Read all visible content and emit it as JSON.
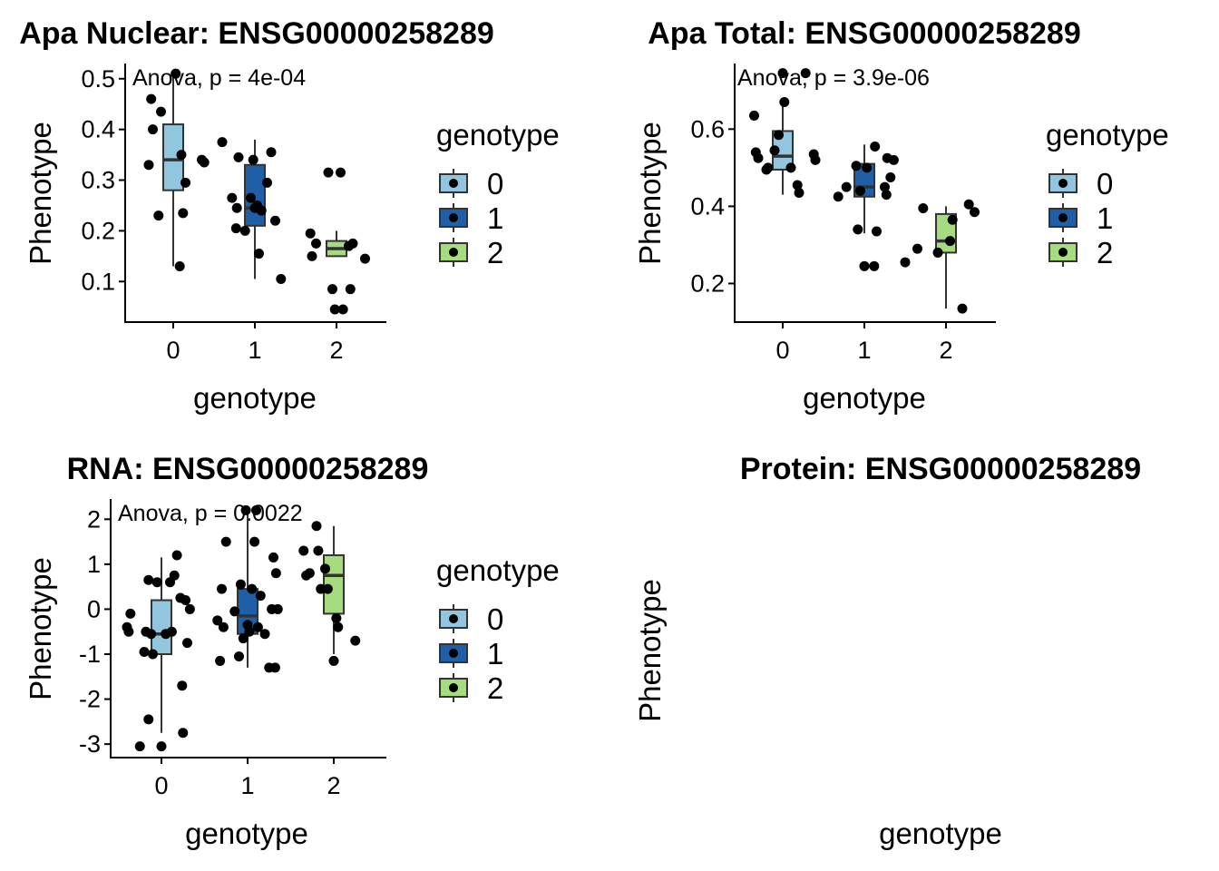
{
  "legend_title": "genotype",
  "legend_colors": {
    "0": "#92c5de",
    "1": "#1f5fa8",
    "2": "#a6dc7f"
  },
  "chart_data": [
    {
      "type": "boxplot",
      "title": "Apa Nuclear: ENSG00000258289",
      "xlabel": "genotype",
      "ylabel": "Phenotype",
      "annotation": "Anova, p = 4e-04",
      "categories": [
        "0",
        "1",
        "2"
      ],
      "ylim": [
        0.02,
        0.53
      ],
      "yticks": [
        0.1,
        0.2,
        0.3,
        0.4,
        0.5
      ],
      "ytick_labels": [
        "0.1",
        "0.2",
        "0.3",
        "0.4",
        "0.5"
      ],
      "legend": [
        "0",
        "1",
        "2"
      ],
      "boxes": [
        {
          "cat": "0",
          "q1": 0.28,
          "median": 0.34,
          "q3": 0.41,
          "whisker_low": 0.13,
          "whisker_high": 0.51
        },
        {
          "cat": "1",
          "q1": 0.21,
          "median": 0.245,
          "q3": 0.33,
          "whisker_low": 0.105,
          "whisker_high": 0.38
        },
        {
          "cat": "2",
          "q1": 0.15,
          "median": 0.165,
          "q3": 0.18,
          "whisker_low": 0.15,
          "whisker_high": 0.2
        }
      ],
      "points": [
        {
          "x": -0.3,
          "y": 0.33
        },
        {
          "x": -0.27,
          "y": 0.46
        },
        {
          "x": -0.25,
          "y": 0.4
        },
        {
          "x": -0.18,
          "y": 0.23
        },
        {
          "x": -0.15,
          "y": 0.435
        },
        {
          "x": 0.03,
          "y": 0.51
        },
        {
          "x": 0.08,
          "y": 0.13
        },
        {
          "x": 0.1,
          "y": 0.35
        },
        {
          "x": 0.12,
          "y": 0.235
        },
        {
          "x": 0.15,
          "y": 0.295
        },
        {
          "x": 0.35,
          "y": 0.34
        },
        {
          "x": 0.38,
          "y": 0.335
        },
        {
          "x": 0.6,
          "y": 0.375
        },
        {
          "x": 0.72,
          "y": 0.265
        },
        {
          "x": 0.77,
          "y": 0.205
        },
        {
          "x": 0.78,
          "y": 0.245
        },
        {
          "x": 0.8,
          "y": 0.345
        },
        {
          "x": 0.88,
          "y": 0.2
        },
        {
          "x": 0.95,
          "y": 0.265
        },
        {
          "x": 0.98,
          "y": 0.34
        },
        {
          "x": 1.0,
          "y": 0.245
        },
        {
          "x": 1.03,
          "y": 0.25
        },
        {
          "x": 1.05,
          "y": 0.155
        },
        {
          "x": 1.08,
          "y": 0.24
        },
        {
          "x": 1.15,
          "y": 0.295
        },
        {
          "x": 1.2,
          "y": 0.355
        },
        {
          "x": 1.25,
          "y": 0.22
        },
        {
          "x": 1.32,
          "y": 0.105
        },
        {
          "x": 1.68,
          "y": 0.195
        },
        {
          "x": 1.7,
          "y": 0.15
        },
        {
          "x": 1.75,
          "y": 0.175
        },
        {
          "x": 1.9,
          "y": 0.315
        },
        {
          "x": 1.95,
          "y": 0.085
        },
        {
          "x": 1.98,
          "y": 0.045
        },
        {
          "x": 2.05,
          "y": 0.315
        },
        {
          "x": 2.08,
          "y": 0.045
        },
        {
          "x": 2.15,
          "y": 0.17
        },
        {
          "x": 2.17,
          "y": 0.085
        },
        {
          "x": 2.2,
          "y": 0.175
        },
        {
          "x": 2.35,
          "y": 0.145
        }
      ]
    },
    {
      "type": "boxplot",
      "title": "Apa Total: ENSG00000258289",
      "xlabel": "genotype",
      "ylabel": "Phenotype",
      "annotation": "Anova, p = 3.9e-06",
      "categories": [
        "0",
        "1",
        "2"
      ],
      "ylim": [
        0.1,
        0.77
      ],
      "yticks": [
        0.2,
        0.4,
        0.6
      ],
      "ytick_labels": [
        "0.2",
        "0.4",
        "0.6"
      ],
      "legend": [
        "0",
        "1",
        "2"
      ],
      "boxes": [
        {
          "cat": "0",
          "q1": 0.495,
          "median": 0.53,
          "q3": 0.595,
          "whisker_low": 0.43,
          "whisker_high": 0.67
        },
        {
          "cat": "1",
          "q1": 0.425,
          "median": 0.45,
          "q3": 0.51,
          "whisker_low": 0.33,
          "whisker_high": 0.56
        },
        {
          "cat": "2",
          "q1": 0.28,
          "median": 0.31,
          "q3": 0.38,
          "whisker_low": 0.135,
          "whisker_high": 0.4
        }
      ],
      "points": [
        {
          "x": -0.35,
          "y": 0.635
        },
        {
          "x": -0.33,
          "y": 0.54
        },
        {
          "x": -0.3,
          "y": 0.525
        },
        {
          "x": -0.2,
          "y": 0.495
        },
        {
          "x": -0.18,
          "y": 0.5
        },
        {
          "x": -0.1,
          "y": 0.545
        },
        {
          "x": -0.05,
          "y": 0.585
        },
        {
          "x": 0.0,
          "y": 0.745
        },
        {
          "x": 0.02,
          "y": 0.67
        },
        {
          "x": 0.1,
          "y": 0.5
        },
        {
          "x": 0.18,
          "y": 0.455
        },
        {
          "x": 0.2,
          "y": 0.435
        },
        {
          "x": 0.28,
          "y": 0.745
        },
        {
          "x": 0.38,
          "y": 0.535
        },
        {
          "x": 0.4,
          "y": 0.52
        },
        {
          "x": 0.68,
          "y": 0.425
        },
        {
          "x": 0.78,
          "y": 0.45
        },
        {
          "x": 0.9,
          "y": 0.505
        },
        {
          "x": 0.92,
          "y": 0.34
        },
        {
          "x": 0.95,
          "y": 0.44
        },
        {
          "x": 1.0,
          "y": 0.245
        },
        {
          "x": 1.03,
          "y": 0.5
        },
        {
          "x": 1.12,
          "y": 0.245
        },
        {
          "x": 1.15,
          "y": 0.335
        },
        {
          "x": 1.13,
          "y": 0.555
        },
        {
          "x": 1.25,
          "y": 0.45
        },
        {
          "x": 1.27,
          "y": 0.43
        },
        {
          "x": 1.28,
          "y": 0.525
        },
        {
          "x": 1.32,
          "y": 0.475
        },
        {
          "x": 1.36,
          "y": 0.52
        },
        {
          "x": 1.5,
          "y": 0.255
        },
        {
          "x": 1.65,
          "y": 0.29
        },
        {
          "x": 1.72,
          "y": 0.395
        },
        {
          "x": 1.9,
          "y": 0.28
        },
        {
          "x": 2.05,
          "y": 0.31
        },
        {
          "x": 2.08,
          "y": 0.365
        },
        {
          "x": 2.2,
          "y": 0.135
        },
        {
          "x": 2.28,
          "y": 0.405
        },
        {
          "x": 2.35,
          "y": 0.385
        }
      ]
    },
    {
      "type": "boxplot",
      "title": "RNA: ENSG00000258289",
      "xlabel": "genotype",
      "ylabel": "Phenotype",
      "annotation": "Anova, p = 0.0022",
      "categories": [
        "0",
        "1",
        "2"
      ],
      "ylim": [
        -3.3,
        2.45
      ],
      "yticks": [
        -3,
        -2,
        -1,
        0,
        1,
        2
      ],
      "ytick_labels": [
        "-3",
        "-2",
        "-1",
        "0",
        "1",
        "2"
      ],
      "legend": [
        "0",
        "1",
        "2"
      ],
      "boxes": [
        {
          "cat": "0",
          "q1": -1.0,
          "median": -0.55,
          "q3": 0.2,
          "whisker_low": -2.75,
          "whisker_high": 1.15
        },
        {
          "cat": "1",
          "q1": -0.55,
          "median": -0.15,
          "q3": 0.45,
          "whisker_low": -1.3,
          "whisker_high": 2.2
        },
        {
          "cat": "2",
          "q1": -0.1,
          "median": 0.75,
          "q3": 1.2,
          "whisker_low": -1.0,
          "whisker_high": 1.85
        }
      ],
      "points": [
        {
          "x": -0.4,
          "y": -0.4
        },
        {
          "x": -0.38,
          "y": -0.5
        },
        {
          "x": -0.36,
          "y": -0.1
        },
        {
          "x": -0.25,
          "y": -3.05
        },
        {
          "x": -0.2,
          "y": -0.95
        },
        {
          "x": -0.18,
          "y": -0.5
        },
        {
          "x": -0.15,
          "y": 0.65
        },
        {
          "x": -0.15,
          "y": -2.45
        },
        {
          "x": -0.12,
          "y": -0.55
        },
        {
          "x": -0.1,
          "y": -1.0
        },
        {
          "x": -0.05,
          "y": 0.6
        },
        {
          "x": 0.0,
          "y": -3.05
        },
        {
          "x": 0.05,
          "y": -0.55
        },
        {
          "x": 0.1,
          "y": 0.6
        },
        {
          "x": 0.12,
          "y": -0.5
        },
        {
          "x": 0.15,
          "y": 0.75
        },
        {
          "x": 0.18,
          "y": 1.2
        },
        {
          "x": 0.22,
          "y": 0.25
        },
        {
          "x": 0.24,
          "y": -1.7
        },
        {
          "x": 0.25,
          "y": -2.75
        },
        {
          "x": 0.28,
          "y": 0.2
        },
        {
          "x": 0.3,
          "y": -0.75
        },
        {
          "x": 0.33,
          "y": 0.0
        },
        {
          "x": 0.65,
          "y": -0.25
        },
        {
          "x": 0.68,
          "y": -1.15
        },
        {
          "x": 0.7,
          "y": 0.45
        },
        {
          "x": 0.72,
          "y": -0.4
        },
        {
          "x": 0.75,
          "y": 1.5
        },
        {
          "x": 0.85,
          "y": -0.05
        },
        {
          "x": 0.9,
          "y": -1.05
        },
        {
          "x": 0.92,
          "y": 0.55
        },
        {
          "x": 0.95,
          "y": -0.65
        },
        {
          "x": 0.98,
          "y": 2.2
        },
        {
          "x": 1.0,
          "y": -0.35
        },
        {
          "x": 1.02,
          "y": -0.5
        },
        {
          "x": 1.05,
          "y": 0.45
        },
        {
          "x": 1.08,
          "y": 1.5
        },
        {
          "x": 1.1,
          "y": 2.2
        },
        {
          "x": 1.12,
          "y": -0.4
        },
        {
          "x": 1.15,
          "y": 0.3
        },
        {
          "x": 1.2,
          "y": -0.55
        },
        {
          "x": 1.25,
          "y": -1.3
        },
        {
          "x": 1.28,
          "y": 0.0
        },
        {
          "x": 1.3,
          "y": 1.15
        },
        {
          "x": 1.32,
          "y": -1.3
        },
        {
          "x": 1.33,
          "y": 0.8
        },
        {
          "x": 1.35,
          "y": 0.0
        },
        {
          "x": 1.65,
          "y": 1.3
        },
        {
          "x": 1.68,
          "y": 0.75
        },
        {
          "x": 1.72,
          "y": 0.8
        },
        {
          "x": 1.8,
          "y": 1.85
        },
        {
          "x": 1.82,
          "y": 1.3
        },
        {
          "x": 1.85,
          "y": 0.45
        },
        {
          "x": 1.9,
          "y": 0.9
        },
        {
          "x": 1.93,
          "y": 0.45
        },
        {
          "x": 2.0,
          "y": -1.15
        },
        {
          "x": 2.03,
          "y": -0.2
        },
        {
          "x": 2.05,
          "y": -0.4
        },
        {
          "x": 2.25,
          "y": -0.7
        }
      ]
    },
    {
      "type": "boxplot",
      "title": "Protein: ENSG00000258289",
      "xlabel": "genotype",
      "ylabel": "Phenotype",
      "categories": [],
      "boxes": [],
      "points": []
    }
  ]
}
